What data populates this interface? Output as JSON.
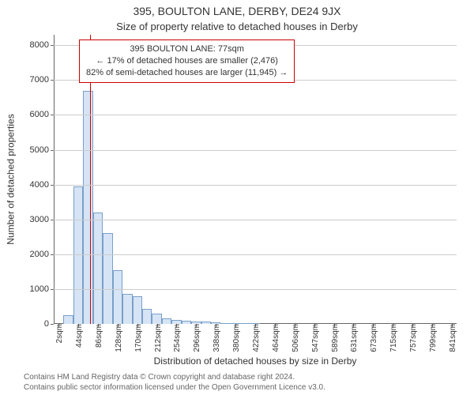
{
  "title": "395, BOULTON LANE, DERBY, DE24 9JX",
  "subtitle": "Size of property relative to detached houses in Derby",
  "annotation": {
    "line1": "395 BOULTON LANE: 77sqm",
    "line2": "← 17% of detached houses are smaller (2,476)",
    "line3": "82% of semi-detached houses are larger (11,945) →",
    "border_color": "#cc0000"
  },
  "y_axis": {
    "label": "Number of detached properties",
    "ticks": [
      0,
      1000,
      2000,
      3000,
      4000,
      5000,
      6000,
      7000,
      8000
    ],
    "max": 8300
  },
  "x_axis": {
    "label": "Distribution of detached houses by size in Derby",
    "tick_labels": [
      "2sqm",
      "44sqm",
      "86sqm",
      "128sqm",
      "170sqm",
      "212sqm",
      "254sqm",
      "296sqm",
      "338sqm",
      "380sqm",
      "422sqm",
      "464sqm",
      "506sqm",
      "547sqm",
      "589sqm",
      "631sqm",
      "673sqm",
      "715sqm",
      "757sqm",
      "799sqm",
      "841sqm"
    ]
  },
  "histogram": {
    "type": "histogram",
    "bar_color": "#d6e4f5",
    "bar_border": "#7a9fc9",
    "values": [
      0,
      260,
      3950,
      6700,
      3200,
      2600,
      1550,
      870,
      800,
      430,
      300,
      150,
      120,
      90,
      70,
      60,
      40,
      30,
      20,
      10,
      10,
      0,
      0,
      0,
      0,
      0,
      0,
      0,
      0,
      0,
      0,
      0,
      0,
      0,
      0,
      0,
      0,
      0,
      0,
      0,
      0
    ],
    "bin_count": 41
  },
  "marker": {
    "position_sqm": 77,
    "color": "#cc0000"
  },
  "footer": {
    "line1": "Contains HM Land Registry data © Crown copyright and database right 2024.",
    "line2": "Contains public sector information licensed under the Open Government Licence v3.0."
  },
  "plot": {
    "grid_color": "#cccccc",
    "axis_color": "#666666",
    "background": "#ffffff",
    "x_range_sqm": [
      0,
      862
    ]
  }
}
